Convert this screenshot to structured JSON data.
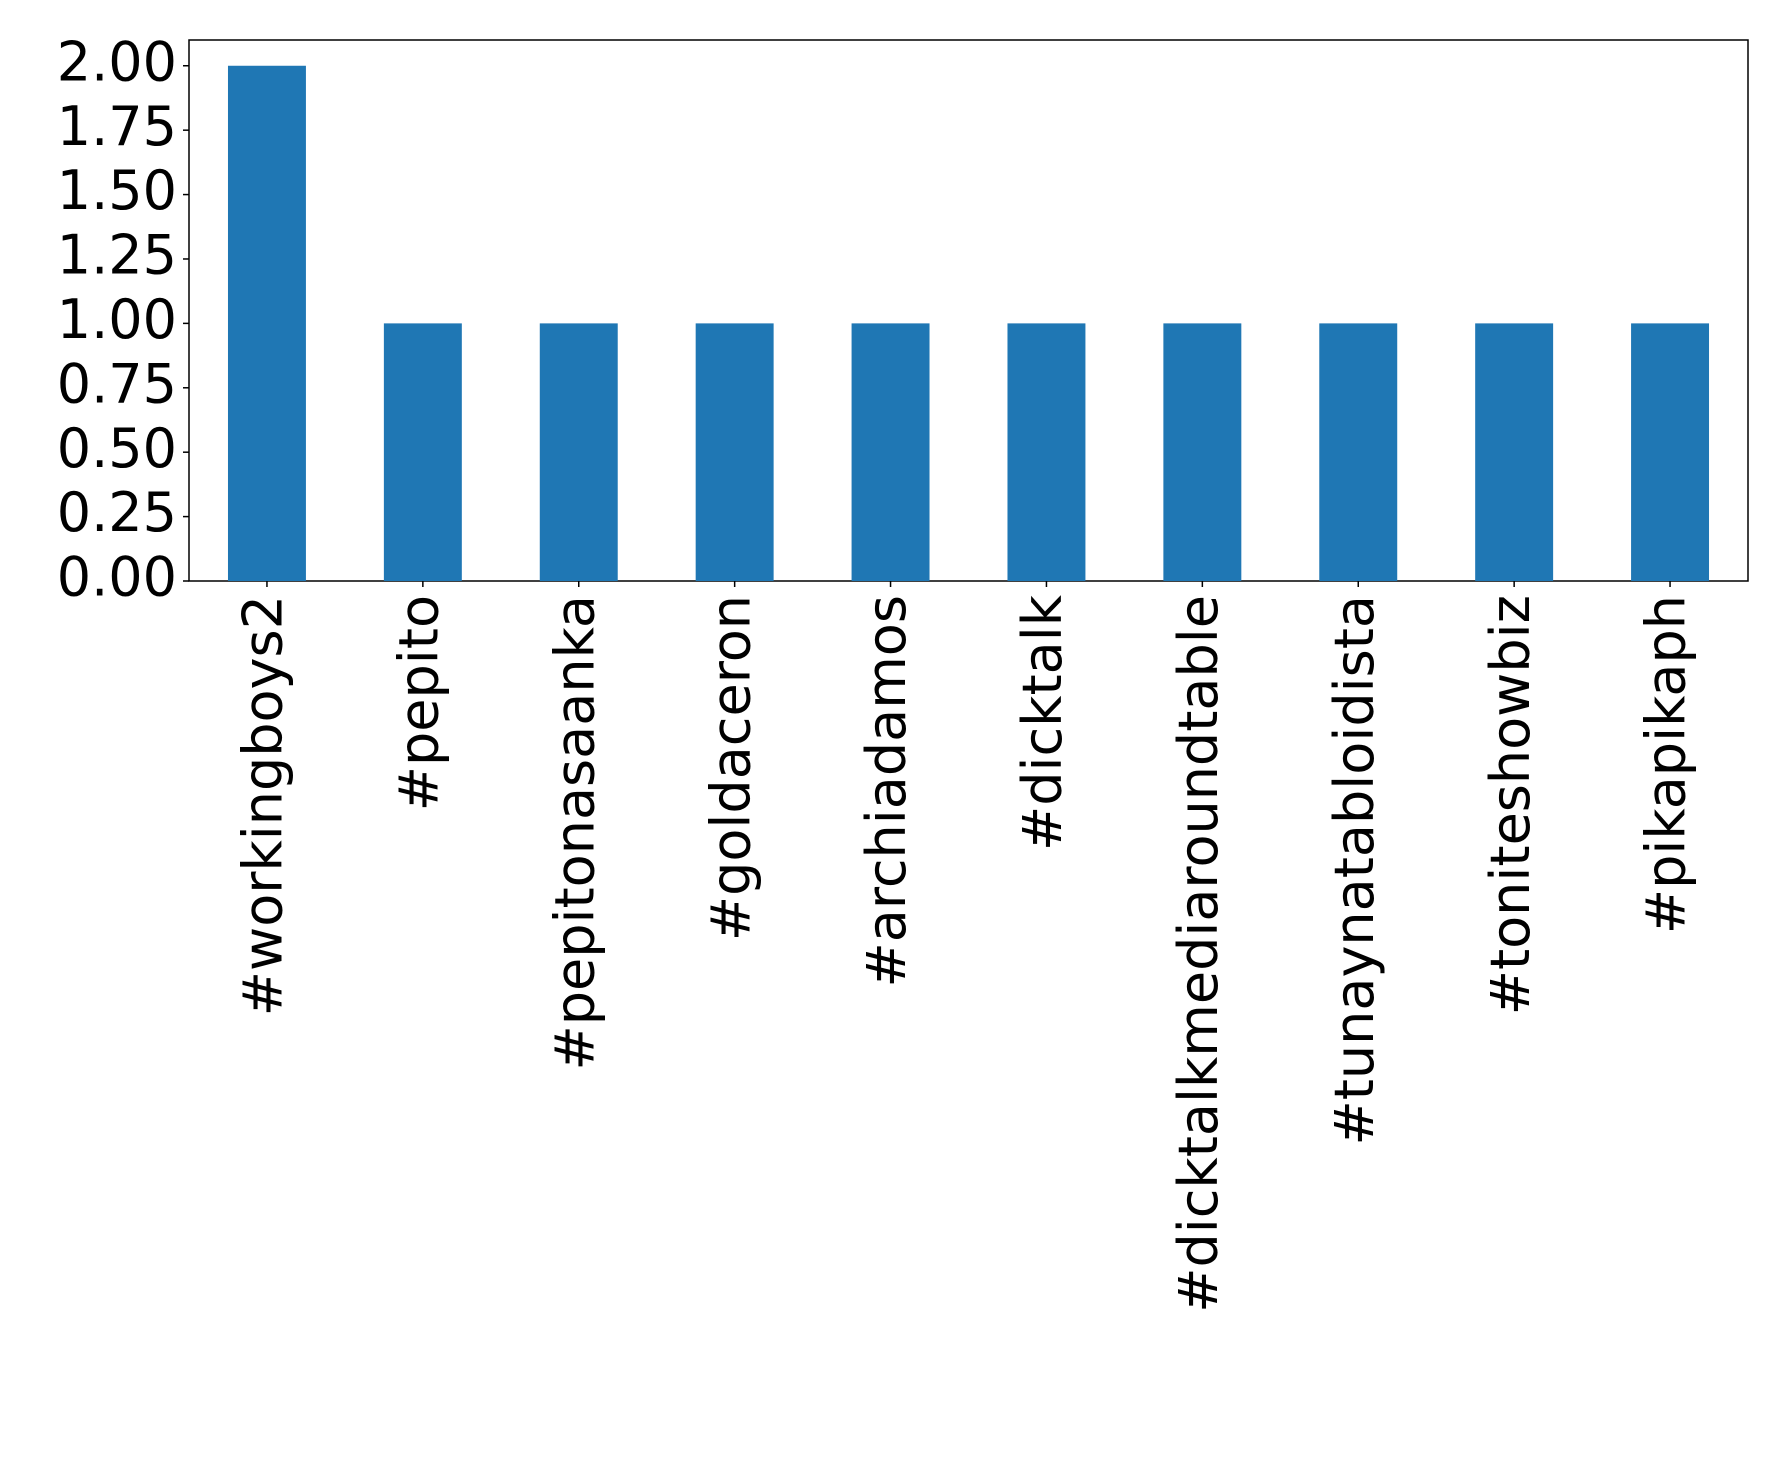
{
  "chart_data": {
    "type": "bar",
    "categories": [
      "#workingboys2",
      "#pepito",
      "#pepitonasaanka",
      "#goldaceron",
      "#archiadamos",
      "#dicktalk",
      "#dicktalkmediaroundtable",
      "#tunaynatabloidista",
      "#toniteshowbiz",
      "#pikapikaph"
    ],
    "values": [
      2,
      1,
      1,
      1,
      1,
      1,
      1,
      1,
      1,
      1
    ],
    "color": "#1f77b4",
    "ylim": [
      0,
      2.1
    ],
    "yticks": [
      {
        "value": 0,
        "label": "0.00"
      },
      {
        "value": 0.25,
        "label": "0.25"
      },
      {
        "value": 0.5,
        "label": "0.50"
      },
      {
        "value": 0.75,
        "label": "0.75"
      },
      {
        "value": 1,
        "label": "1.00"
      },
      {
        "value": 1.25,
        "label": "1.25"
      },
      {
        "value": 1.5,
        "label": "1.50"
      },
      {
        "value": 1.75,
        "label": "1.75"
      },
      {
        "value": 2,
        "label": "2.00"
      }
    ],
    "grid": false
  }
}
